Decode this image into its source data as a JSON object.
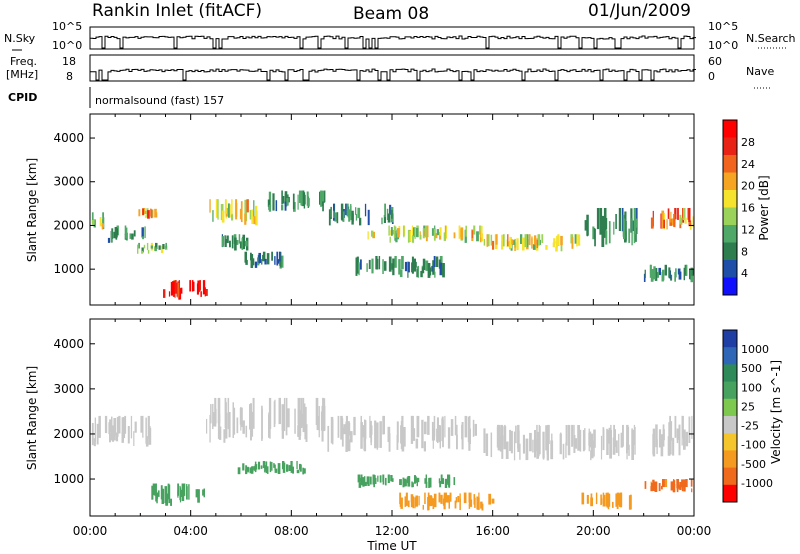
{
  "header": {
    "station": "Rankin Inlet (fitACF)",
    "beam": "Beam 08",
    "date": "01/Jun/2009"
  },
  "summary": {
    "nsky_label": "N.Sky",
    "nsky_ticks": [
      "10^5",
      "10^0"
    ],
    "nsearch_label": "N.Search",
    "nsearch_ticks": [
      "10^5",
      "10^0"
    ],
    "freq_label": "Freq.",
    "freq_unit": "[MHz]",
    "freq_ticks": [
      "18",
      "8"
    ],
    "nave_label": "Nave",
    "nave_ticks": [
      "60",
      "0"
    ],
    "cpid_label": "CPID",
    "cpid_value": "normalsound (fast) 157"
  },
  "colors": {
    "power_scale": [
      "#1010ff",
      "#1e4ea8",
      "#2e7d4f",
      "#4fa868",
      "#9bd35a",
      "#f5e32d",
      "#f5a521",
      "#f0641e",
      "#e82214",
      "#ff0000"
    ],
    "velocity_scale": [
      "#1f3fa5",
      "#2f67b6",
      "#2f8a5a",
      "#48a25f",
      "#7ec84f",
      "#c8c8c8",
      "#f5c62b",
      "#f59a20",
      "#f06a1e",
      "#ff0000"
    ]
  },
  "chart_data": [
    {
      "type": "heatmap",
      "name": "power",
      "ylabel": "Slant Range [km]",
      "xlabel": "",
      "yticks": [
        1000,
        2000,
        3000,
        4000
      ],
      "ylim": [
        180,
        4550
      ],
      "xlim_hours": [
        0,
        24
      ],
      "colorbar": {
        "label": "Power [dB]",
        "ticks": [
          "4",
          "8",
          "12",
          "16",
          "20",
          "24",
          "28"
        ],
        "range": [
          0,
          30
        ]
      },
      "regions": [
        {
          "t0": 0.0,
          "t1": 0.6,
          "r0": 1900,
          "r1": 2300,
          "level": 16
        },
        {
          "t0": 0.6,
          "t1": 2.2,
          "r0": 1600,
          "r1": 2000,
          "level": 8
        },
        {
          "t0": 1.8,
          "t1": 3.0,
          "r0": 1350,
          "r1": 1600,
          "level": 12
        },
        {
          "t0": 1.6,
          "t1": 2.6,
          "r0": 2150,
          "r1": 2400,
          "level": 20
        },
        {
          "t0": 2.8,
          "t1": 4.6,
          "r0": 300,
          "r1": 750,
          "level": 28
        },
        {
          "t0": 4.6,
          "t1": 6.6,
          "r0": 2000,
          "r1": 2600,
          "level": 16
        },
        {
          "t0": 5.0,
          "t1": 6.2,
          "r0": 1400,
          "r1": 1800,
          "level": 8
        },
        {
          "t0": 6.0,
          "t1": 7.8,
          "r0": 1000,
          "r1": 1400,
          "level": 8
        },
        {
          "t0": 7.0,
          "t1": 9.4,
          "r0": 2300,
          "r1": 2800,
          "level": 8
        },
        {
          "t0": 9.4,
          "t1": 12.0,
          "r0": 2000,
          "r1": 2500,
          "level": 8
        },
        {
          "t0": 11.0,
          "t1": 15.6,
          "r0": 1600,
          "r1": 2000,
          "level": 16
        },
        {
          "t0": 10.5,
          "t1": 14.0,
          "r0": 800,
          "r1": 1300,
          "level": 8
        },
        {
          "t0": 15.6,
          "t1": 19.5,
          "r0": 1400,
          "r1": 1800,
          "level": 16
        },
        {
          "t0": 19.5,
          "t1": 21.8,
          "r0": 1500,
          "r1": 2400,
          "level": 8
        },
        {
          "t0": 22.0,
          "t1": 24.0,
          "r0": 1900,
          "r1": 2400,
          "level": 20
        },
        {
          "t0": 22.0,
          "t1": 24.0,
          "r0": 700,
          "r1": 1100,
          "level": 8
        }
      ]
    },
    {
      "type": "heatmap",
      "name": "velocity",
      "ylabel": "Slant Range [km]",
      "xlabel": "Time UT",
      "xticks": [
        "00:00",
        "04:00",
        "08:00",
        "12:00",
        "16:00",
        "20:00",
        "00:00"
      ],
      "yticks": [
        1000,
        2000,
        3000,
        4000
      ],
      "ylim": [
        180,
        4550
      ],
      "xlim_hours": [
        0,
        24
      ],
      "colorbar": {
        "label": "Velocity [m s^-1]",
        "ticks": [
          "1000",
          "500",
          "100",
          "25",
          "-25",
          "-100",
          "-500",
          "-1000"
        ],
        "range": [
          -1000,
          1000
        ]
      },
      "regions": [
        {
          "t0": 0.0,
          "t1": 2.4,
          "r0": 1700,
          "r1": 2400,
          "level": 0
        },
        {
          "t0": 2.4,
          "t1": 4.6,
          "r0": 400,
          "r1": 900,
          "level": 150
        },
        {
          "t0": 4.6,
          "t1": 9.4,
          "r0": 1800,
          "r1": 2800,
          "level": 0
        },
        {
          "t0": 5.5,
          "t1": 8.5,
          "r0": 1100,
          "r1": 1400,
          "level": 150
        },
        {
          "t0": 9.4,
          "t1": 15.6,
          "r0": 1600,
          "r1": 2400,
          "level": 0
        },
        {
          "t0": 10.5,
          "t1": 14.5,
          "r0": 800,
          "r1": 1100,
          "level": 150
        },
        {
          "t0": 12.0,
          "t1": 16.0,
          "r0": 300,
          "r1": 700,
          "level": -150
        },
        {
          "t0": 15.6,
          "t1": 21.8,
          "r0": 1400,
          "r1": 2200,
          "level": 0
        },
        {
          "t0": 19.5,
          "t1": 21.5,
          "r0": 300,
          "r1": 700,
          "level": -300
        },
        {
          "t0": 22.0,
          "t1": 24.0,
          "r0": 1500,
          "r1": 2400,
          "level": 0
        },
        {
          "t0": 22.0,
          "t1": 24.0,
          "r0": 700,
          "r1": 1000,
          "level": -600
        }
      ]
    }
  ]
}
